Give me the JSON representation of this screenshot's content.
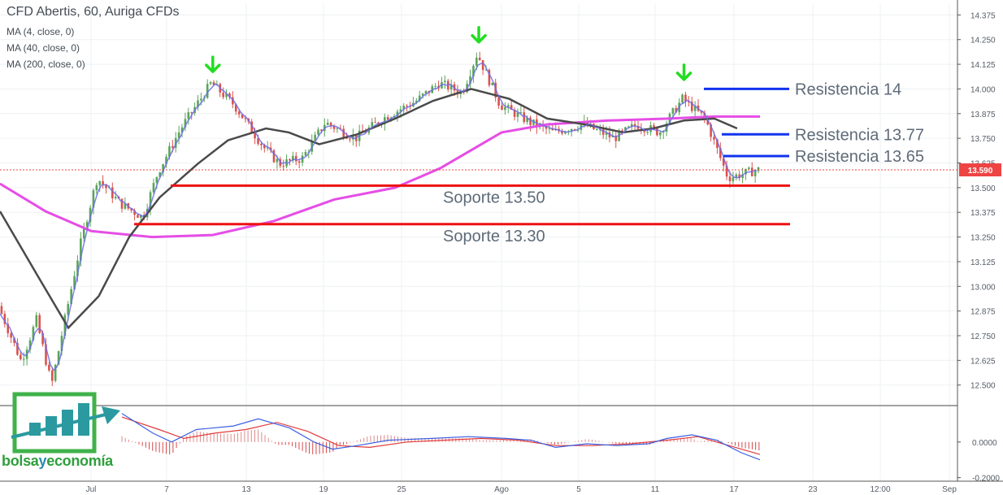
{
  "header": {
    "title": "CFD Abertis, 60, Auriga CFDs",
    "indicators": [
      "MA (4, close, 0)",
      "MA (40, close, 0)",
      "MA (200, close, 0)"
    ]
  },
  "logo": {
    "part1": "bolsa",
    "part2": "y",
    "part3": "economía"
  },
  "colors": {
    "up_candle": "#5aa55a",
    "down_candle": "#d9534f",
    "ma4": "#6b6be8",
    "ma40": "#4a4a4a",
    "ma200": "#e64de6",
    "support": "#ee1111",
    "resistance": "#1133ee",
    "marker": "#22dd22",
    "price_tag": "#ee4444"
  },
  "chart_data": {
    "type": "candlestick",
    "ylim": [
      12.4,
      14.43
    ],
    "y_ticks": [
      "14.375",
      "14.250",
      "14.125",
      "14.000",
      "13.875",
      "13.750",
      "13.625",
      "13.500",
      "13.375",
      "13.250",
      "13.125",
      "13.000",
      "12.875",
      "12.750",
      "12.625",
      "12.500"
    ],
    "x_ticks": [
      "Jul",
      "7",
      "13",
      "19",
      "25",
      "Ago",
      "5",
      "11",
      "17",
      "23",
      "12:00",
      "Sep"
    ],
    "last_price": "13.590",
    "price_path": [
      [
        0.0,
        12.9
      ],
      [
        0.03,
        12.62
      ],
      [
        0.05,
        12.83
      ],
      [
        0.07,
        12.5
      ],
      [
        0.09,
        12.88
      ],
      [
        0.11,
        13.25
      ],
      [
        0.13,
        13.55
      ],
      [
        0.16,
        13.42
      ],
      [
        0.19,
        13.35
      ],
      [
        0.21,
        13.58
      ],
      [
        0.24,
        13.8
      ],
      [
        0.28,
        14.03
      ],
      [
        0.31,
        13.92
      ],
      [
        0.35,
        13.7
      ],
      [
        0.37,
        13.62
      ],
      [
        0.4,
        13.65
      ],
      [
        0.43,
        13.83
      ],
      [
        0.47,
        13.75
      ],
      [
        0.51,
        13.86
      ],
      [
        0.55,
        13.94
      ],
      [
        0.58,
        14.03
      ],
      [
        0.61,
        13.98
      ],
      [
        0.63,
        14.18
      ],
      [
        0.66,
        13.92
      ],
      [
        0.7,
        13.83
      ],
      [
        0.73,
        13.78
      ],
      [
        0.77,
        13.82
      ],
      [
        0.81,
        13.75
      ],
      [
        0.84,
        13.82
      ],
      [
        0.87,
        13.78
      ],
      [
        0.9,
        13.95
      ],
      [
        0.93,
        13.85
      ],
      [
        0.96,
        13.55
      ],
      [
        1.0,
        13.59
      ]
    ],
    "ma40_path": [
      [
        0.0,
        13.38
      ],
      [
        0.05,
        13.05
      ],
      [
        0.09,
        12.79
      ],
      [
        0.13,
        12.95
      ],
      [
        0.17,
        13.25
      ],
      [
        0.21,
        13.45
      ],
      [
        0.26,
        13.62
      ],
      [
        0.3,
        13.74
      ],
      [
        0.35,
        13.8
      ],
      [
        0.38,
        13.78
      ],
      [
        0.42,
        13.72
      ],
      [
        0.47,
        13.77
      ],
      [
        0.52,
        13.85
      ],
      [
        0.57,
        13.94
      ],
      [
        0.62,
        14.0
      ],
      [
        0.67,
        13.95
      ],
      [
        0.72,
        13.85
      ],
      [
        0.77,
        13.82
      ],
      [
        0.82,
        13.78
      ],
      [
        0.86,
        13.8
      ],
      [
        0.9,
        13.84
      ],
      [
        0.94,
        13.85
      ],
      [
        0.97,
        13.8
      ]
    ],
    "ma200_path": [
      [
        0.0,
        13.52
      ],
      [
        0.06,
        13.38
      ],
      [
        0.12,
        13.28
      ],
      [
        0.2,
        13.25
      ],
      [
        0.28,
        13.26
      ],
      [
        0.36,
        13.33
      ],
      [
        0.44,
        13.44
      ],
      [
        0.52,
        13.5
      ],
      [
        0.58,
        13.6
      ],
      [
        0.66,
        13.78
      ],
      [
        0.72,
        13.82
      ],
      [
        0.8,
        13.84
      ],
      [
        0.88,
        13.85
      ],
      [
        0.94,
        13.86
      ],
      [
        1.0,
        13.86
      ]
    ],
    "supports": [
      {
        "label": "Soporte 13.50",
        "value": 13.51,
        "x_from": 0.22,
        "x_to": 1.0
      },
      {
        "label": "Soporte 13.30",
        "value": 13.315,
        "x_from": 0.18,
        "x_to": 1.0
      }
    ],
    "resistances": [
      {
        "label": "Resistencia 14",
        "value": 14.0,
        "x_from": 0.88,
        "x_to": 1.0
      },
      {
        "label": "Resistencia 13.77",
        "value": 13.77,
        "x_from": 0.91,
        "x_to": 1.0
      },
      {
        "label": "Resistencia 13.65",
        "value": 13.66,
        "x_from": 0.91,
        "x_to": 1.0
      }
    ],
    "peak_markers": [
      {
        "x_frac": 0.28,
        "value": 14.03
      },
      {
        "x_frac": 0.63,
        "value": 14.18
      },
      {
        "x_frac": 0.9,
        "value": 13.99
      }
    ],
    "oscillator": {
      "y_ticks": [
        "0.0000",
        "-0.2000"
      ],
      "ylim": [
        -0.22,
        0.2
      ],
      "macd_path": [
        [
          0.0,
          0.16
        ],
        [
          0.05,
          0.05
        ],
        [
          0.08,
          0.0
        ],
        [
          0.12,
          0.07
        ],
        [
          0.18,
          0.09
        ],
        [
          0.22,
          0.13
        ],
        [
          0.27,
          0.08
        ],
        [
          0.31,
          0.0
        ],
        [
          0.34,
          -0.04
        ],
        [
          0.38,
          -0.02
        ],
        [
          0.43,
          0.01
        ],
        [
          0.5,
          0.02
        ],
        [
          0.56,
          0.03
        ],
        [
          0.62,
          0.02
        ],
        [
          0.66,
          0.01
        ],
        [
          0.7,
          -0.03
        ],
        [
          0.75,
          -0.01
        ],
        [
          0.8,
          -0.02
        ],
        [
          0.85,
          -0.01
        ],
        [
          0.88,
          0.02
        ],
        [
          0.92,
          0.04
        ],
        [
          0.96,
          0.01
        ],
        [
          1.0,
          -0.06
        ],
        [
          1.03,
          -0.1
        ]
      ],
      "signal_path": [
        [
          0.0,
          0.14
        ],
        [
          0.06,
          0.07
        ],
        [
          0.1,
          0.02
        ],
        [
          0.15,
          0.05
        ],
        [
          0.2,
          0.07
        ],
        [
          0.25,
          0.11
        ],
        [
          0.3,
          0.06
        ],
        [
          0.35,
          -0.02
        ],
        [
          0.4,
          -0.03
        ],
        [
          0.46,
          0.0
        ],
        [
          0.52,
          0.01
        ],
        [
          0.58,
          0.02
        ],
        [
          0.64,
          0.01
        ],
        [
          0.7,
          -0.02
        ],
        [
          0.76,
          -0.02
        ],
        [
          0.82,
          -0.01
        ],
        [
          0.88,
          0.01
        ],
        [
          0.93,
          0.03
        ],
        [
          0.98,
          -0.02
        ],
        [
          1.03,
          -0.07
        ]
      ]
    }
  }
}
